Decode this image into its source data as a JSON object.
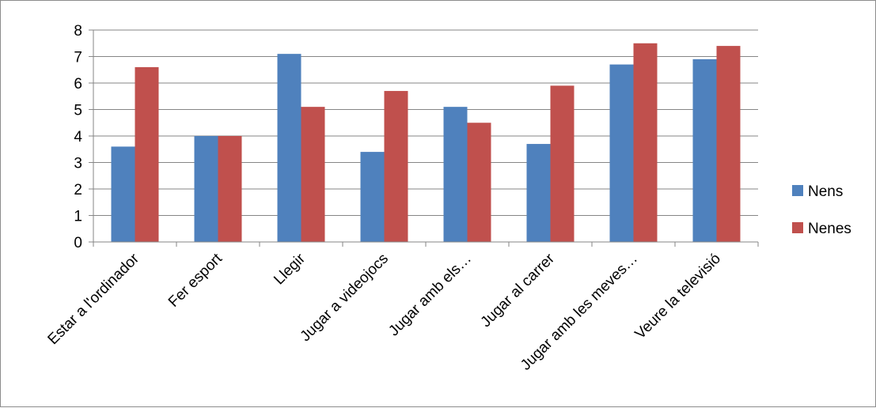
{
  "chart_data": {
    "type": "bar",
    "categories": [
      "Estar a l'ordinador",
      "Fer esport",
      "Llegir",
      "Jugar a videojocs",
      "Jugar amb els…",
      "Jugar al carrer",
      "Jugar amb les meves…",
      "Veure la televisió"
    ],
    "series": [
      {
        "name": "Nens",
        "color": "#4f81bd",
        "values": [
          3.6,
          4.0,
          7.1,
          3.4,
          5.1,
          3.7,
          6.7,
          6.9
        ]
      },
      {
        "name": "Nenes",
        "color": "#c0504d",
        "values": [
          6.6,
          4.0,
          5.1,
          5.7,
          4.5,
          5.9,
          7.5,
          7.4
        ]
      }
    ],
    "y_ticks": [
      "0",
      "1",
      "2",
      "3",
      "4",
      "5",
      "6",
      "7",
      "8"
    ],
    "ylim": [
      0,
      8
    ],
    "grid": true,
    "legend_position": "right"
  }
}
